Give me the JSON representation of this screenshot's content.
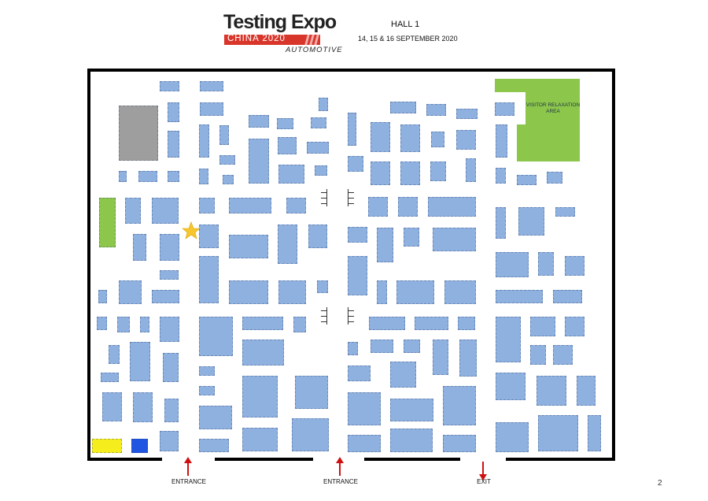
{
  "header": {
    "logo_title": "Testing Expo",
    "logo_band": "CHINA 2020",
    "logo_sub": "AUTOMOTIVE",
    "hall": "HALL 1",
    "dates": "14, 15 & 16 SEPTEMBER 2020"
  },
  "floorplan": {
    "visitor_area_label": "VISITOR RELAXATION AREA",
    "doors": [
      {
        "label": "ENTRANCE"
      },
      {
        "label": "ENTRANCE"
      },
      {
        "label": "EXIT"
      }
    ],
    "colors": {
      "booth": "#8fb1e0",
      "visitor_area": "#8cc74c",
      "feature_area": "#9e9e9e",
      "highlight_yellow": "#f5ee1c",
      "highlight_blue": "#1f55e0",
      "star": "#f7c62f",
      "arrow": "#d01010"
    }
  },
  "page_number": "2"
}
